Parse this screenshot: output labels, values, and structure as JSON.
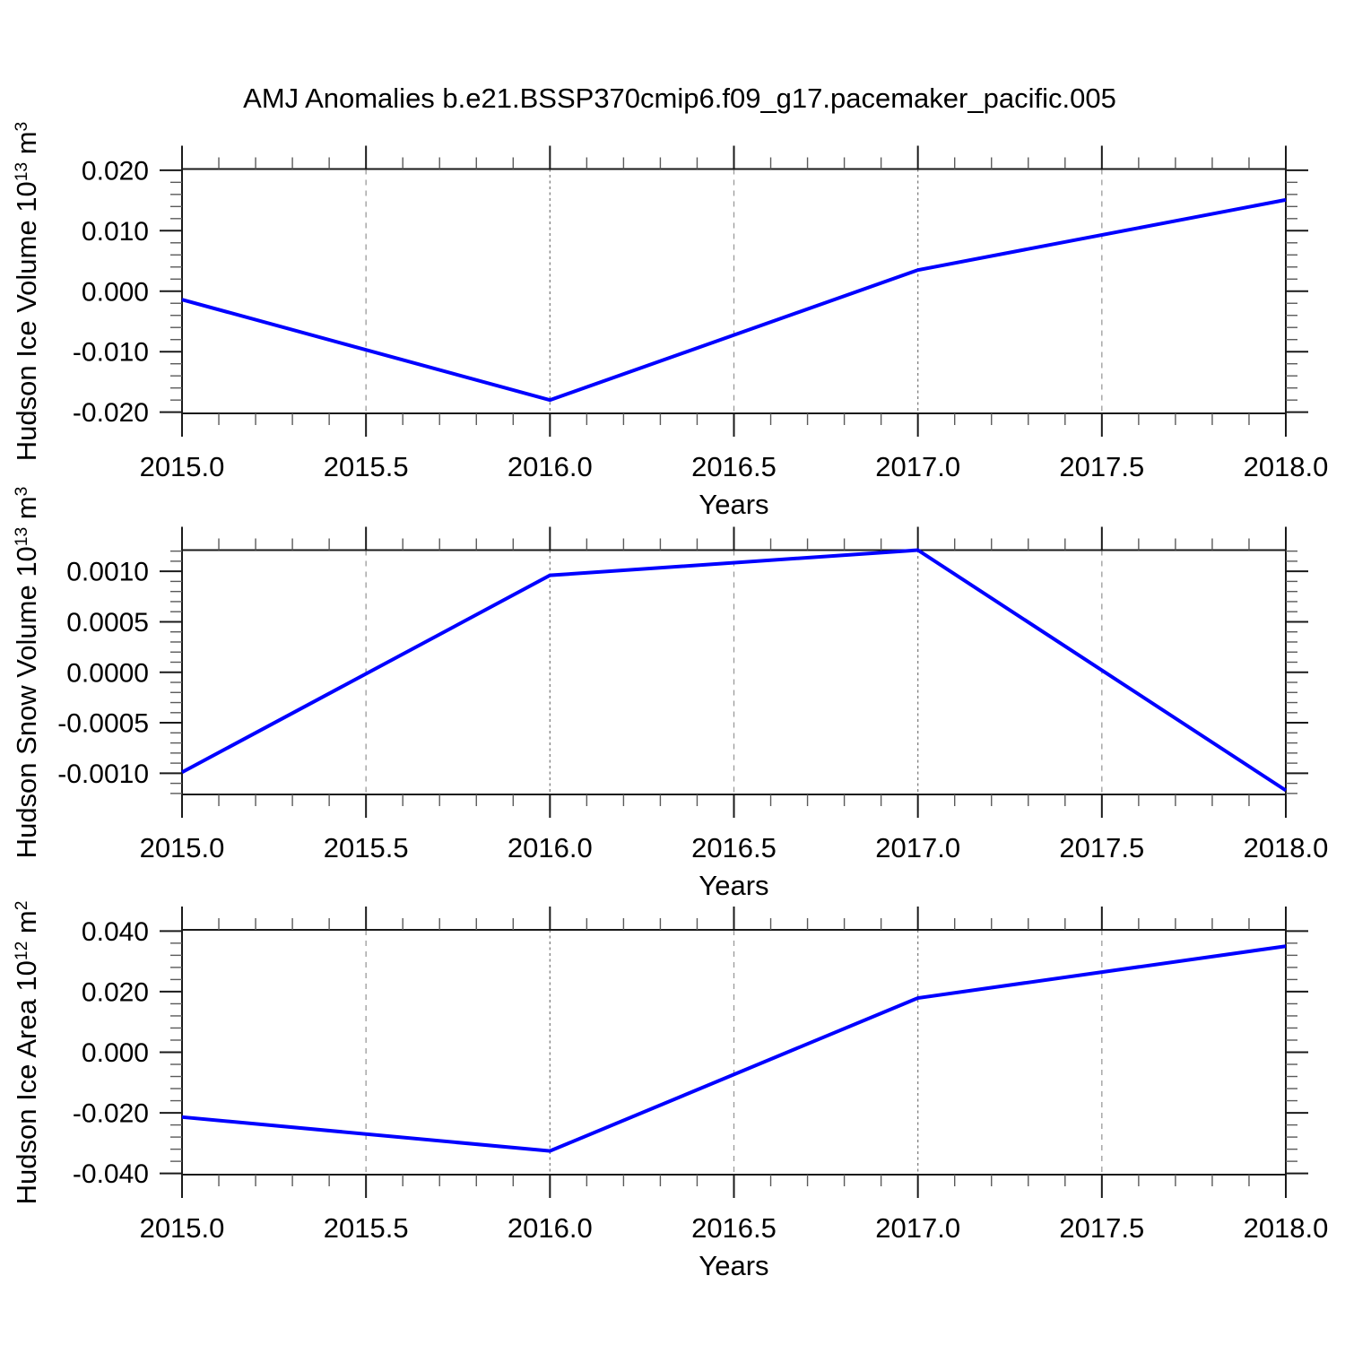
{
  "figure": {
    "title": "AMJ Anomalies b.e21.BSSP370cmip6.f09_g17.pacemaker_pacific.005",
    "background": "#ffffff",
    "line_color": "#0000ff",
    "frame_color": "#1a1a1a",
    "major_tick_color": "#1a1a1a",
    "minor_tick_color": "#5a5a5a",
    "grid_color_year": "#808080",
    "grid_color_halfyear": "#9a9a9a"
  },
  "chart_data": [
    {
      "type": "line",
      "panel": "hudson-ice-volume",
      "ylabel_parts": [
        {
          "t": "Hudson Ice Volume 10"
        },
        {
          "sup": "13"
        },
        {
          "t": " m"
        },
        {
          "sup": "3"
        }
      ],
      "xlabel": "Years",
      "x": [
        2015.0,
        2016.0,
        2017.0,
        2018.0
      ],
      "values": [
        -0.0014,
        -0.018,
        0.0035,
        0.0151
      ],
      "xlim": [
        2015.0,
        2018.0
      ],
      "ylim": [
        -0.0202,
        0.0202
      ],
      "yticks": [
        -0.02,
        -0.01,
        0.0,
        0.01,
        0.02
      ],
      "ytick_labels": [
        "-0.020",
        "-0.010",
        "0.000",
        "0.010",
        "0.020"
      ],
      "y_minor_step": 0.002,
      "xticks": [
        2015.0,
        2015.5,
        2016.0,
        2016.5,
        2017.0,
        2017.5,
        2018.0
      ],
      "xtick_labels": [
        "2015.0",
        "2015.5",
        "2016.0",
        "2016.5",
        "2017.0",
        "2017.5",
        "2018.0"
      ],
      "x_minor_step": 0.1,
      "grid_year": [
        2016.0,
        2017.0
      ],
      "grid_halfyear": [
        2015.5,
        2016.5,
        2017.5
      ],
      "legend": "none",
      "grid": "vertical-dashed"
    },
    {
      "type": "line",
      "panel": "hudson-snow-volume",
      "ylabel_parts": [
        {
          "t": "Hudson Snow Volume 10"
        },
        {
          "sup": "13"
        },
        {
          "t": " m"
        },
        {
          "sup": "3"
        }
      ],
      "xlabel": "Years",
      "x": [
        2015.0,
        2016.0,
        2017.0,
        2018.0
      ],
      "values": [
        -0.00099,
        0.00096,
        0.00121,
        -0.00117
      ],
      "xlim": [
        2015.0,
        2018.0
      ],
      "ylim": [
        -0.00121,
        0.00121
      ],
      "yticks": [
        -0.001,
        -0.0005,
        0.0,
        0.0005,
        0.001
      ],
      "ytick_labels": [
        "-0.0010",
        "-0.0005",
        "0.0000",
        "0.0005",
        "0.0010"
      ],
      "y_minor_step": 0.0001,
      "xticks": [
        2015.0,
        2015.5,
        2016.0,
        2016.5,
        2017.0,
        2017.5,
        2018.0
      ],
      "xtick_labels": [
        "2015.0",
        "2015.5",
        "2016.0",
        "2016.5",
        "2017.0",
        "2017.5",
        "2018.0"
      ],
      "x_minor_step": 0.1,
      "grid_year": [
        2016.0,
        2017.0
      ],
      "grid_halfyear": [
        2015.5,
        2016.5,
        2017.5
      ],
      "legend": "none",
      "grid": "vertical-dashed"
    },
    {
      "type": "line",
      "panel": "hudson-ice-area",
      "ylabel_parts": [
        {
          "t": "Hudson Ice Area 10"
        },
        {
          "sup": "12"
        },
        {
          "t": " m"
        },
        {
          "sup": "2"
        }
      ],
      "xlabel": "Years",
      "x": [
        2015.0,
        2016.0,
        2017.0,
        2018.0
      ],
      "values": [
        -0.0214,
        -0.0326,
        0.0179,
        0.035
      ],
      "xlim": [
        2015.0,
        2018.0
      ],
      "ylim": [
        -0.0404,
        0.0404
      ],
      "yticks": [
        -0.04,
        -0.02,
        0.0,
        0.02,
        0.04
      ],
      "ytick_labels": [
        "-0.040",
        "-0.020",
        "0.000",
        "0.020",
        "0.040"
      ],
      "y_minor_step": 0.004,
      "xticks": [
        2015.0,
        2015.5,
        2016.0,
        2016.5,
        2017.0,
        2017.5,
        2018.0
      ],
      "xtick_labels": [
        "2015.0",
        "2015.5",
        "2016.0",
        "2016.5",
        "2017.0",
        "2017.5",
        "2018.0"
      ],
      "x_minor_step": 0.1,
      "grid_year": [
        2016.0,
        2017.0
      ],
      "grid_halfyear": [
        2015.5,
        2016.5,
        2017.5
      ],
      "legend": "none",
      "grid": "vertical-dashed"
    }
  ]
}
